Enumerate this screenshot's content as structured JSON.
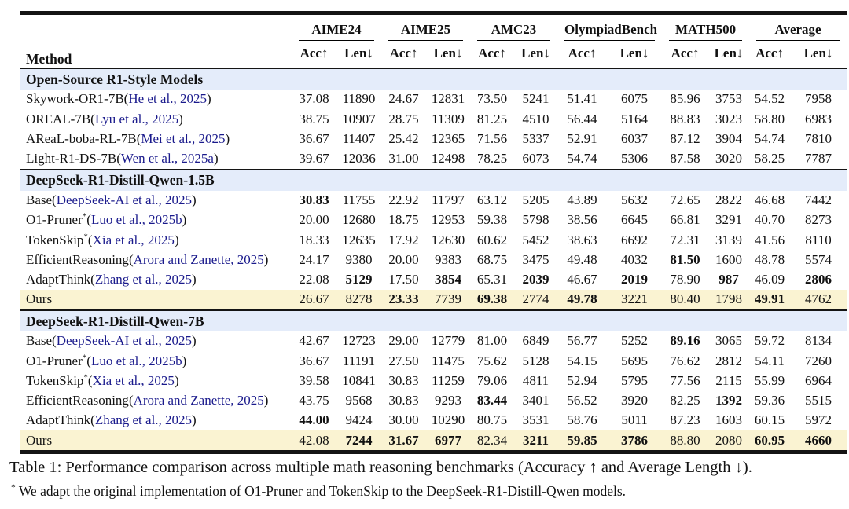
{
  "colors": {
    "section_bg": "#e4ecfa",
    "ours_bg": "#faf3d2",
    "link": "#1a1a8c"
  },
  "table": {
    "method_header": "Method",
    "groups": [
      "AIME24",
      "AIME25",
      "AMC23",
      "OlympiadBench",
      "MATH500",
      "Average"
    ],
    "sub_acc": "Acc↑",
    "sub_len": "Len↓",
    "sections": [
      {
        "title": "Open-Source R1-Style Models",
        "rows": [
          {
            "name": "Skywork-OR1-7B",
            "sup": "",
            "cite": "He et al., 2025",
            "ours": false,
            "values": [
              "37.08",
              "11890",
              "24.67",
              "12831",
              "73.50",
              "5241",
              "51.41",
              "6075",
              "85.96",
              "3753",
              "54.52",
              "7958"
            ],
            "bold": []
          },
          {
            "name": "OREAL-7B",
            "sup": "",
            "cite": "Lyu et al., 2025",
            "ours": false,
            "values": [
              "38.75",
              "10907",
              "28.75",
              "11309",
              "81.25",
              "4510",
              "56.44",
              "5164",
              "88.83",
              "3023",
              "58.80",
              "6983"
            ],
            "bold": []
          },
          {
            "name": "AReaL-boba-RL-7B",
            "sup": "",
            "cite": "Mei et al., 2025",
            "ours": false,
            "values": [
              "36.67",
              "11407",
              "25.42",
              "12365",
              "71.56",
              "5337",
              "52.91",
              "6037",
              "87.12",
              "3904",
              "54.74",
              "7810"
            ],
            "bold": []
          },
          {
            "name": "Light-R1-DS-7B",
            "sup": "",
            "cite": "Wen et al., 2025a",
            "ours": false,
            "values": [
              "39.67",
              "12036",
              "31.00",
              "12498",
              "78.25",
              "6073",
              "54.74",
              "5306",
              "87.58",
              "3020",
              "58.25",
              "7787"
            ],
            "bold": []
          }
        ]
      },
      {
        "title": "DeepSeek-R1-Distill-Qwen-1.5B",
        "rows": [
          {
            "name": "Base",
            "sup": "",
            "cite": "DeepSeek-AI et al., 2025",
            "ours": false,
            "values": [
              "30.83",
              "11755",
              "22.92",
              "11797",
              "63.12",
              "5205",
              "43.89",
              "5632",
              "72.65",
              "2822",
              "46.68",
              "7442"
            ],
            "bold": [
              0
            ]
          },
          {
            "name": "O1-Pruner",
            "sup": "*",
            "cite": "Luo et al., 2025b",
            "ours": false,
            "values": [
              "20.00",
              "12680",
              "18.75",
              "12953",
              "59.38",
              "5798",
              "38.56",
              "6645",
              "66.81",
              "3291",
              "40.70",
              "8273"
            ],
            "bold": []
          },
          {
            "name": "TokenSkip",
            "sup": "*",
            "cite": "Xia et al., 2025",
            "ours": false,
            "values": [
              "18.33",
              "12635",
              "17.92",
              "12630",
              "60.62",
              "5452",
              "38.63",
              "6692",
              "72.31",
              "3139",
              "41.56",
              "8110"
            ],
            "bold": []
          },
          {
            "name": "EfficientReasoning",
            "sup": "",
            "cite": "Arora and Zanette, 2025",
            "ours": false,
            "values": [
              "24.17",
              "9380",
              "20.00",
              "9383",
              "68.75",
              "3475",
              "49.48",
              "4032",
              "81.50",
              "1600",
              "48.78",
              "5574"
            ],
            "bold": [
              8
            ]
          },
          {
            "name": "AdaptThink",
            "sup": "",
            "cite": "Zhang et al., 2025",
            "ours": false,
            "values": [
              "22.08",
              "5129",
              "17.50",
              "3854",
              "65.31",
              "2039",
              "46.67",
              "2019",
              "78.90",
              "987",
              "46.09",
              "2806"
            ],
            "bold": [
              1,
              3,
              5,
              7,
              9,
              11
            ]
          },
          {
            "name": "Ours",
            "sup": "",
            "cite": null,
            "ours": true,
            "values": [
              "26.67",
              "8278",
              "23.33",
              "7739",
              "69.38",
              "2774",
              "49.78",
              "3221",
              "80.40",
              "1798",
              "49.91",
              "4762"
            ],
            "bold": [
              2,
              4,
              6,
              10
            ]
          }
        ]
      },
      {
        "title": "DeepSeek-R1-Distill-Qwen-7B",
        "rows": [
          {
            "name": "Base",
            "sup": "",
            "cite": "DeepSeek-AI et al., 2025",
            "ours": false,
            "values": [
              "42.67",
              "12723",
              "29.00",
              "12779",
              "81.00",
              "6849",
              "56.77",
              "5252",
              "89.16",
              "3065",
              "59.72",
              "8134"
            ],
            "bold": [
              8
            ]
          },
          {
            "name": "O1-Pruner",
            "sup": "*",
            "cite": "Luo et al., 2025b",
            "ours": false,
            "values": [
              "36.67",
              "11191",
              "27.50",
              "11475",
              "75.62",
              "5128",
              "54.15",
              "5695",
              "76.62",
              "2812",
              "54.11",
              "7260"
            ],
            "bold": []
          },
          {
            "name": "TokenSkip",
            "sup": "*",
            "cite": "Xia et al., 2025",
            "ours": false,
            "values": [
              "39.58",
              "10841",
              "30.83",
              "11259",
              "79.06",
              "4811",
              "52.94",
              "5795",
              "77.56",
              "2115",
              "55.99",
              "6964"
            ],
            "bold": []
          },
          {
            "name": "EfficientReasoning",
            "sup": "",
            "cite": "Arora and Zanette, 2025",
            "ours": false,
            "values": [
              "43.75",
              "9568",
              "30.83",
              "9293",
              "83.44",
              "3401",
              "56.52",
              "3920",
              "82.25",
              "1392",
              "59.36",
              "5515"
            ],
            "bold": [
              4,
              9
            ]
          },
          {
            "name": "AdaptThink",
            "sup": "",
            "cite": "Zhang et al., 2025",
            "ours": false,
            "values": [
              "44.00",
              "9424",
              "30.00",
              "10290",
              "80.75",
              "3531",
              "58.76",
              "5011",
              "87.23",
              "1603",
              "60.15",
              "5972"
            ],
            "bold": [
              0
            ]
          },
          {
            "name": "Ours",
            "sup": "",
            "cite": null,
            "ours": true,
            "values": [
              "42.08",
              "7244",
              "31.67",
              "6977",
              "82.34",
              "3211",
              "59.85",
              "3786",
              "88.80",
              "2080",
              "60.95",
              "4660"
            ],
            "bold": [
              1,
              2,
              3,
              5,
              6,
              7,
              10,
              11
            ]
          }
        ]
      }
    ]
  },
  "caption": "Table 1: Performance comparison across multiple math reasoning benchmarks (Accuracy ↑ and Average Length ↓).",
  "footnote": {
    "marker": "*",
    "text": "We adapt the original implementation of O1-Pruner and TokenSkip to the DeepSeek-R1-Distill-Qwen models."
  }
}
